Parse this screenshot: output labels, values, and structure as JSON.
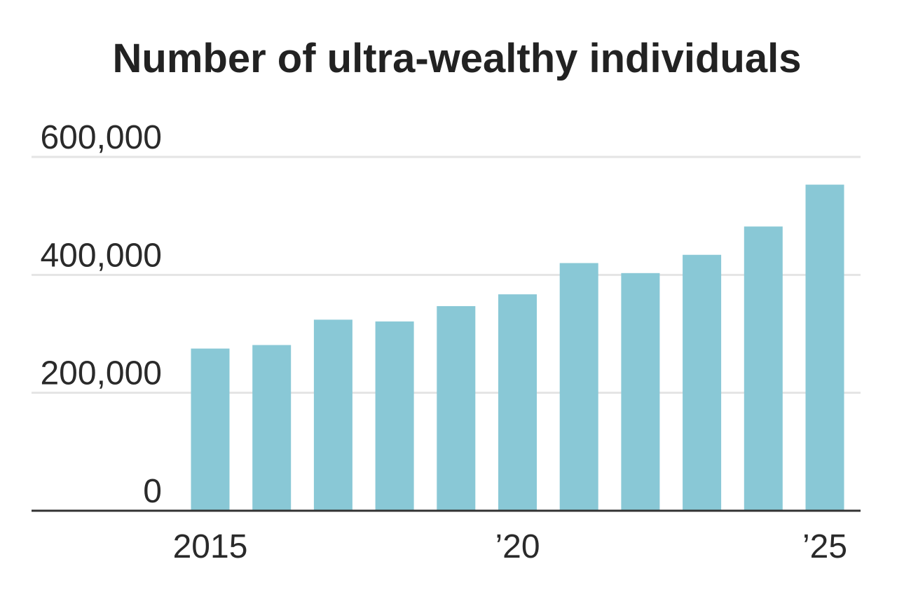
{
  "chart_data": {
    "type": "bar",
    "title": "Number of ultra-wealthy individuals",
    "xlabel": "",
    "ylabel": "",
    "categories": [
      "2015",
      "2016",
      "2017",
      "2018",
      "2019",
      "2020",
      "2021",
      "2022",
      "2023",
      "2024",
      "2025"
    ],
    "values": [
      275000,
      281000,
      324000,
      321000,
      347000,
      367000,
      420000,
      403000,
      434000,
      482000,
      553000
    ],
    "ylim": [
      0,
      600000
    ],
    "yticks": [
      {
        "value": 0,
        "label": "0"
      },
      {
        "value": 200000,
        "label": "200,000"
      },
      {
        "value": 400000,
        "label": "400,000"
      },
      {
        "value": 600000,
        "label": "600,000"
      }
    ],
    "xticks": [
      {
        "category": "2015",
        "label": "2015"
      },
      {
        "category": "2020",
        "label": "’20"
      },
      {
        "category": "2025",
        "label": "’25"
      }
    ],
    "grid": true,
    "legend": "none",
    "bar_color": "#89c8d6",
    "grid_color": "#e4e4e4",
    "axis_color": "#333333"
  }
}
